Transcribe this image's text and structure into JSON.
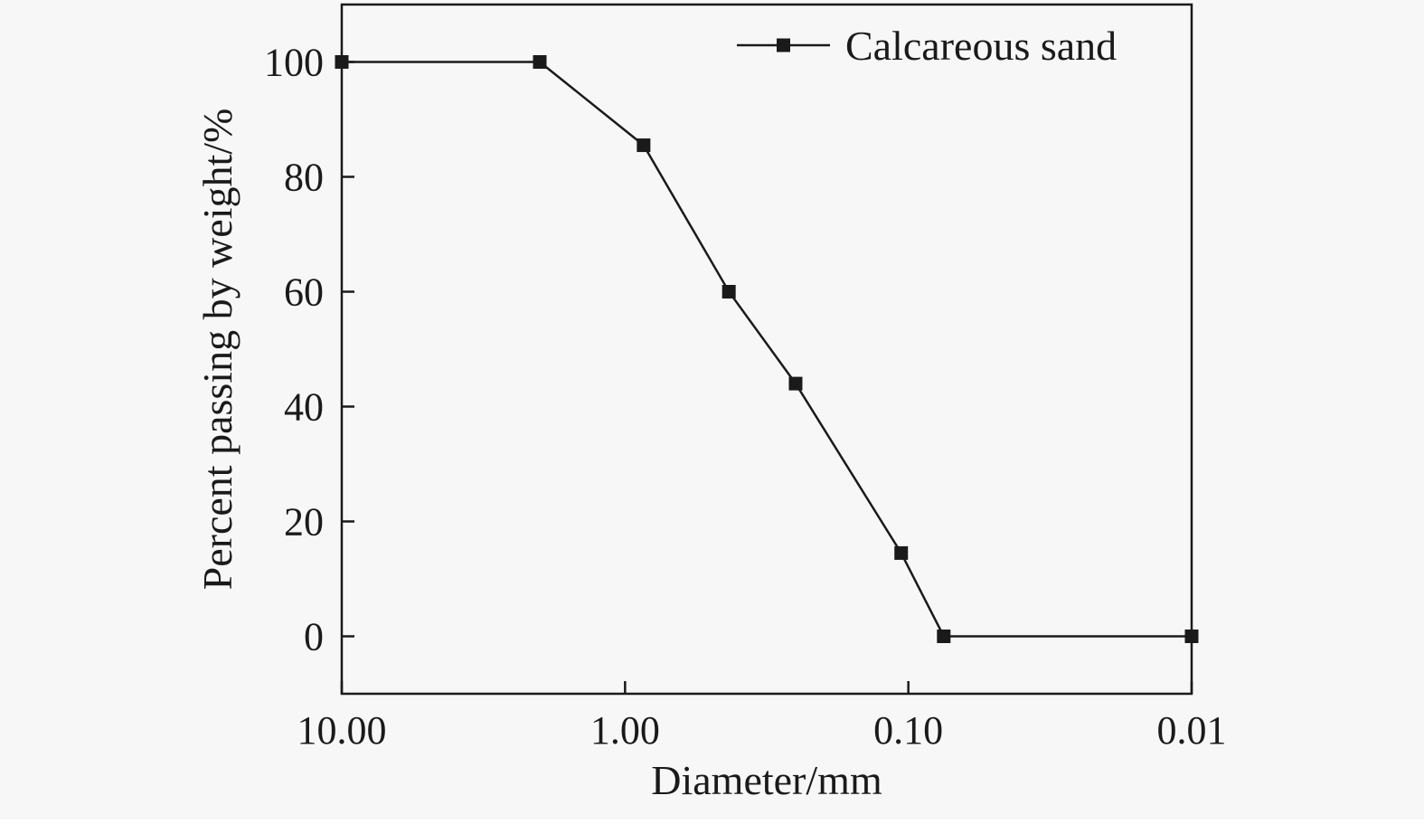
{
  "chart_data": {
    "type": "line",
    "title": "",
    "xlabel": "Diameter/mm",
    "ylabel": "Percent passing by weight/%",
    "x_scale": "log",
    "x_reversed": true,
    "xlim": [
      10,
      0.01
    ],
    "ylim": [
      -10,
      110
    ],
    "x_ticks": [
      {
        "value": 10,
        "label": "10.00"
      },
      {
        "value": 1,
        "label": "1.00"
      },
      {
        "value": 0.1,
        "label": "0.10"
      },
      {
        "value": 0.01,
        "label": "0.01"
      }
    ],
    "y_ticks": [
      {
        "value": 0,
        "label": "0"
      },
      {
        "value": 20,
        "label": "20"
      },
      {
        "value": 40,
        "label": "40"
      },
      {
        "value": 60,
        "label": "60"
      },
      {
        "value": 80,
        "label": "80"
      },
      {
        "value": 100,
        "label": "100"
      }
    ],
    "grid": false,
    "legend_position": "top-right",
    "series": [
      {
        "name": "Calcareous sand",
        "color": "#1a1a1a",
        "marker": "square",
        "x": [
          10,
          2,
          0.86,
          0.43,
          0.25,
          0.106,
          0.075,
          0.01
        ],
        "y": [
          100,
          100,
          85.5,
          60,
          44,
          14.5,
          0,
          0
        ]
      }
    ]
  }
}
